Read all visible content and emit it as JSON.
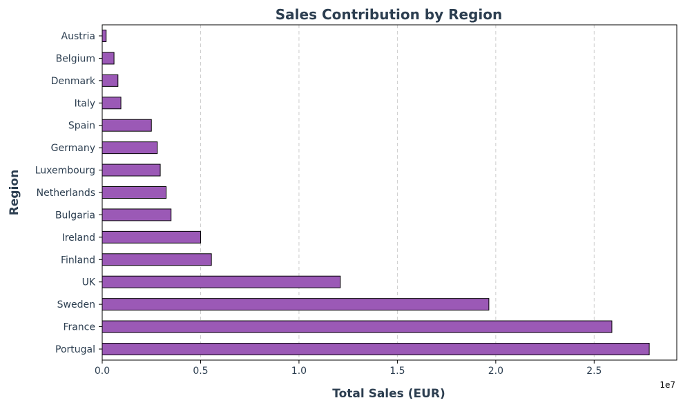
{
  "chart_data": {
    "type": "bar",
    "orientation": "horizontal",
    "title": "Sales Contribution by Region",
    "xlabel": "Total Sales (EUR)",
    "ylabel": "Region",
    "x_scale_label": "1e7",
    "xlim": [
      0,
      2.92
    ],
    "x_ticks": [
      "0.0",
      "0.5",
      "1.0",
      "1.5",
      "2.0",
      "2.5"
    ],
    "x_tick_values": [
      0,
      0.5,
      1.0,
      1.5,
      2.0,
      2.5
    ],
    "grid": "x-dashed",
    "bar_color": "#9b59b6",
    "bar_edge_color": "#000000",
    "text_color": "#2c3e50",
    "categories": [
      "Austria",
      "Belgium",
      "Denmark",
      "Italy",
      "Spain",
      "Germany",
      "Luxembourg",
      "Netherlands",
      "Bulgaria",
      "Ireland",
      "Finland",
      "UK",
      "Sweden",
      "France",
      "Portugal"
    ],
    "values": [
      0.02,
      0.06,
      0.08,
      0.095,
      0.25,
      0.28,
      0.295,
      0.325,
      0.35,
      0.5,
      0.555,
      1.21,
      1.965,
      2.59,
      2.78
    ]
  }
}
